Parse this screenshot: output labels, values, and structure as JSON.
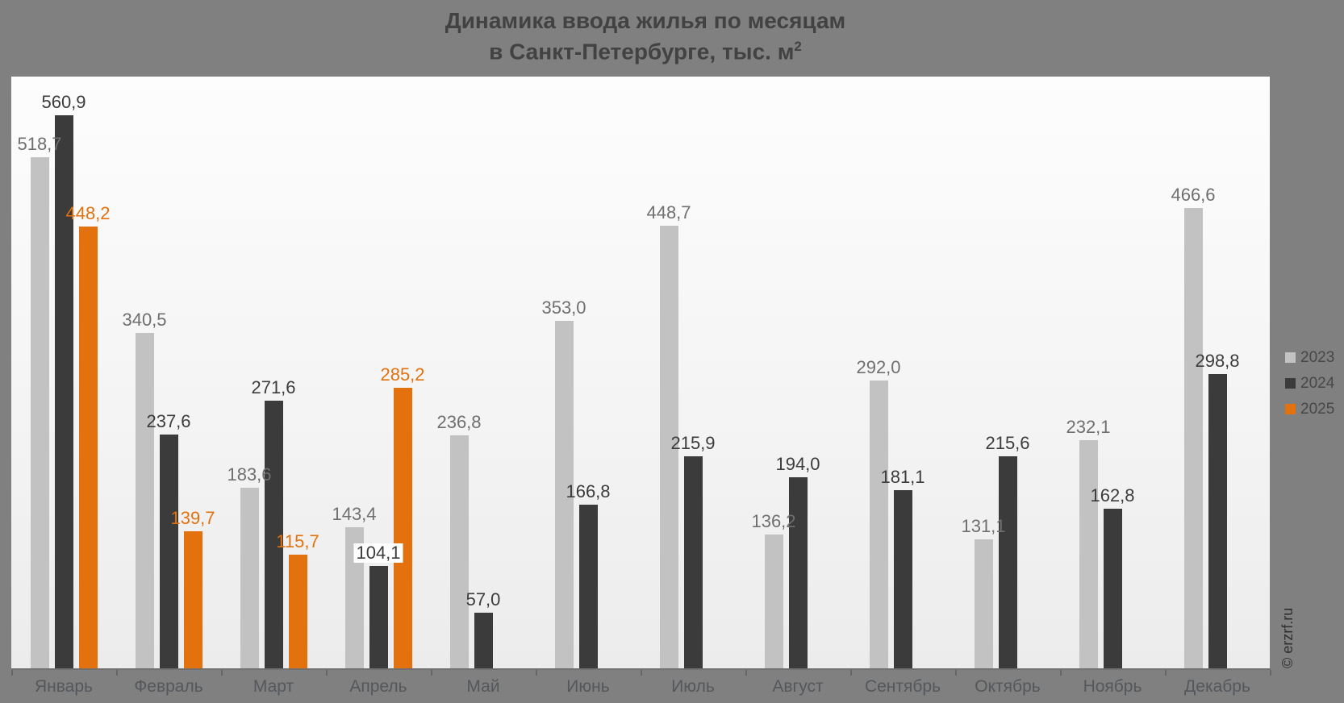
{
  "title": {
    "line1": "Динамика ввода жилья по месяцам",
    "line2_main": "в Санкт-Петербурге, тыс. м",
    "line2_sup": "2"
  },
  "watermark": "© erzrf.ru",
  "chart_data": {
    "type": "bar",
    "title": "Динамика ввода жилья по месяцам",
    "subtitle": "в Санкт-Петербурге, тыс. м²",
    "categories": [
      "Январь",
      "Февраль",
      "Март",
      "Апрель",
      "Май",
      "Июнь",
      "Июль",
      "Август",
      "Сентябрь",
      "Октябрь",
      "Ноябрь",
      "Декабрь"
    ],
    "series": [
      {
        "name": "2023",
        "color": "#c2c2c2",
        "label_color": "#6f6f6f",
        "values": [
          518.7,
          340.5,
          183.6,
          143.4,
          236.8,
          353.0,
          448.7,
          136.2,
          292.0,
          131.1,
          232.1,
          466.6
        ]
      },
      {
        "name": "2024",
        "color": "#3b3b3b",
        "label_color": "#3c3c3c",
        "boxed_indices": [
          3
        ],
        "values": [
          560.9,
          237.6,
          271.6,
          104.1,
          57.0,
          166.8,
          215.9,
          194.0,
          181.1,
          215.6,
          162.8,
          298.8
        ]
      },
      {
        "name": "2025",
        "color": "#e2710e",
        "label_color": "#e2710e",
        "values": [
          448.2,
          139.7,
          115.7,
          285.2,
          null,
          null,
          null,
          null,
          null,
          null,
          null,
          null
        ]
      }
    ],
    "ylabel": "",
    "xlabel": "",
    "ylim": [
      0,
      600
    ],
    "decimal_separator": ",",
    "grid": false,
    "legend_position": "right"
  }
}
